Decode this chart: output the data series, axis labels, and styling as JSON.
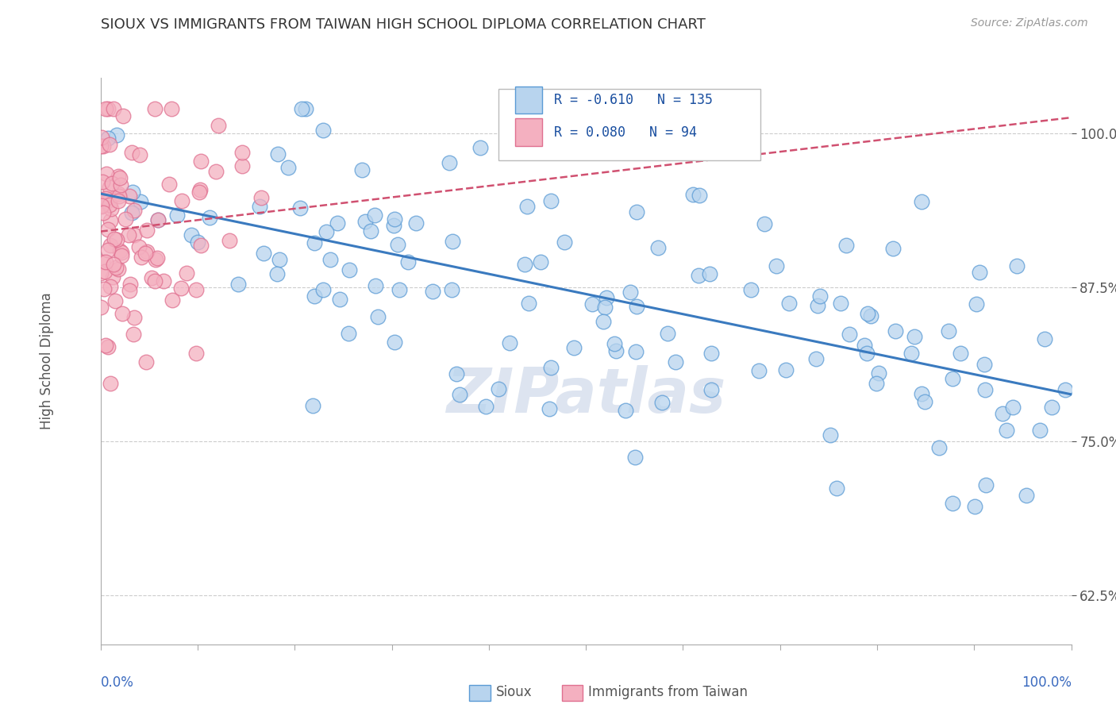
{
  "title": "SIOUX VS IMMIGRANTS FROM TAIWAN HIGH SCHOOL DIPLOMA CORRELATION CHART",
  "source_text": "Source: ZipAtlas.com",
  "xlabel_bottom_left": "0.0%",
  "xlabel_bottom_right": "100.0%",
  "ylabel": "High School Diploma",
  "ytick_labels": [
    "62.5%",
    "75.0%",
    "87.5%",
    "100.0%"
  ],
  "ytick_values": [
    0.625,
    0.75,
    0.875,
    1.0
  ],
  "xlim": [
    0.0,
    1.0
  ],
  "ylim": [
    0.585,
    1.045
  ],
  "legend_blue_R": "-0.610",
  "legend_blue_N": "135",
  "legend_pink_R": "0.080",
  "legend_pink_N": "94",
  "blue_face_color": "#b8d4ee",
  "blue_edge_color": "#5b9bd5",
  "pink_face_color": "#f4b0c0",
  "pink_edge_color": "#e07090",
  "blue_line_color": "#3a7abf",
  "pink_line_color": "#d05070",
  "watermark_text": "ZIPatlas",
  "blue_N": 135,
  "pink_N": 94,
  "blue_R": -0.61,
  "pink_R": 0.08,
  "grid_color": "#cccccc",
  "background_color": "#ffffff",
  "xtick_positions": [
    0.0,
    0.1,
    0.2,
    0.3,
    0.4,
    0.5,
    0.6,
    0.7,
    0.8,
    0.9,
    1.0
  ]
}
